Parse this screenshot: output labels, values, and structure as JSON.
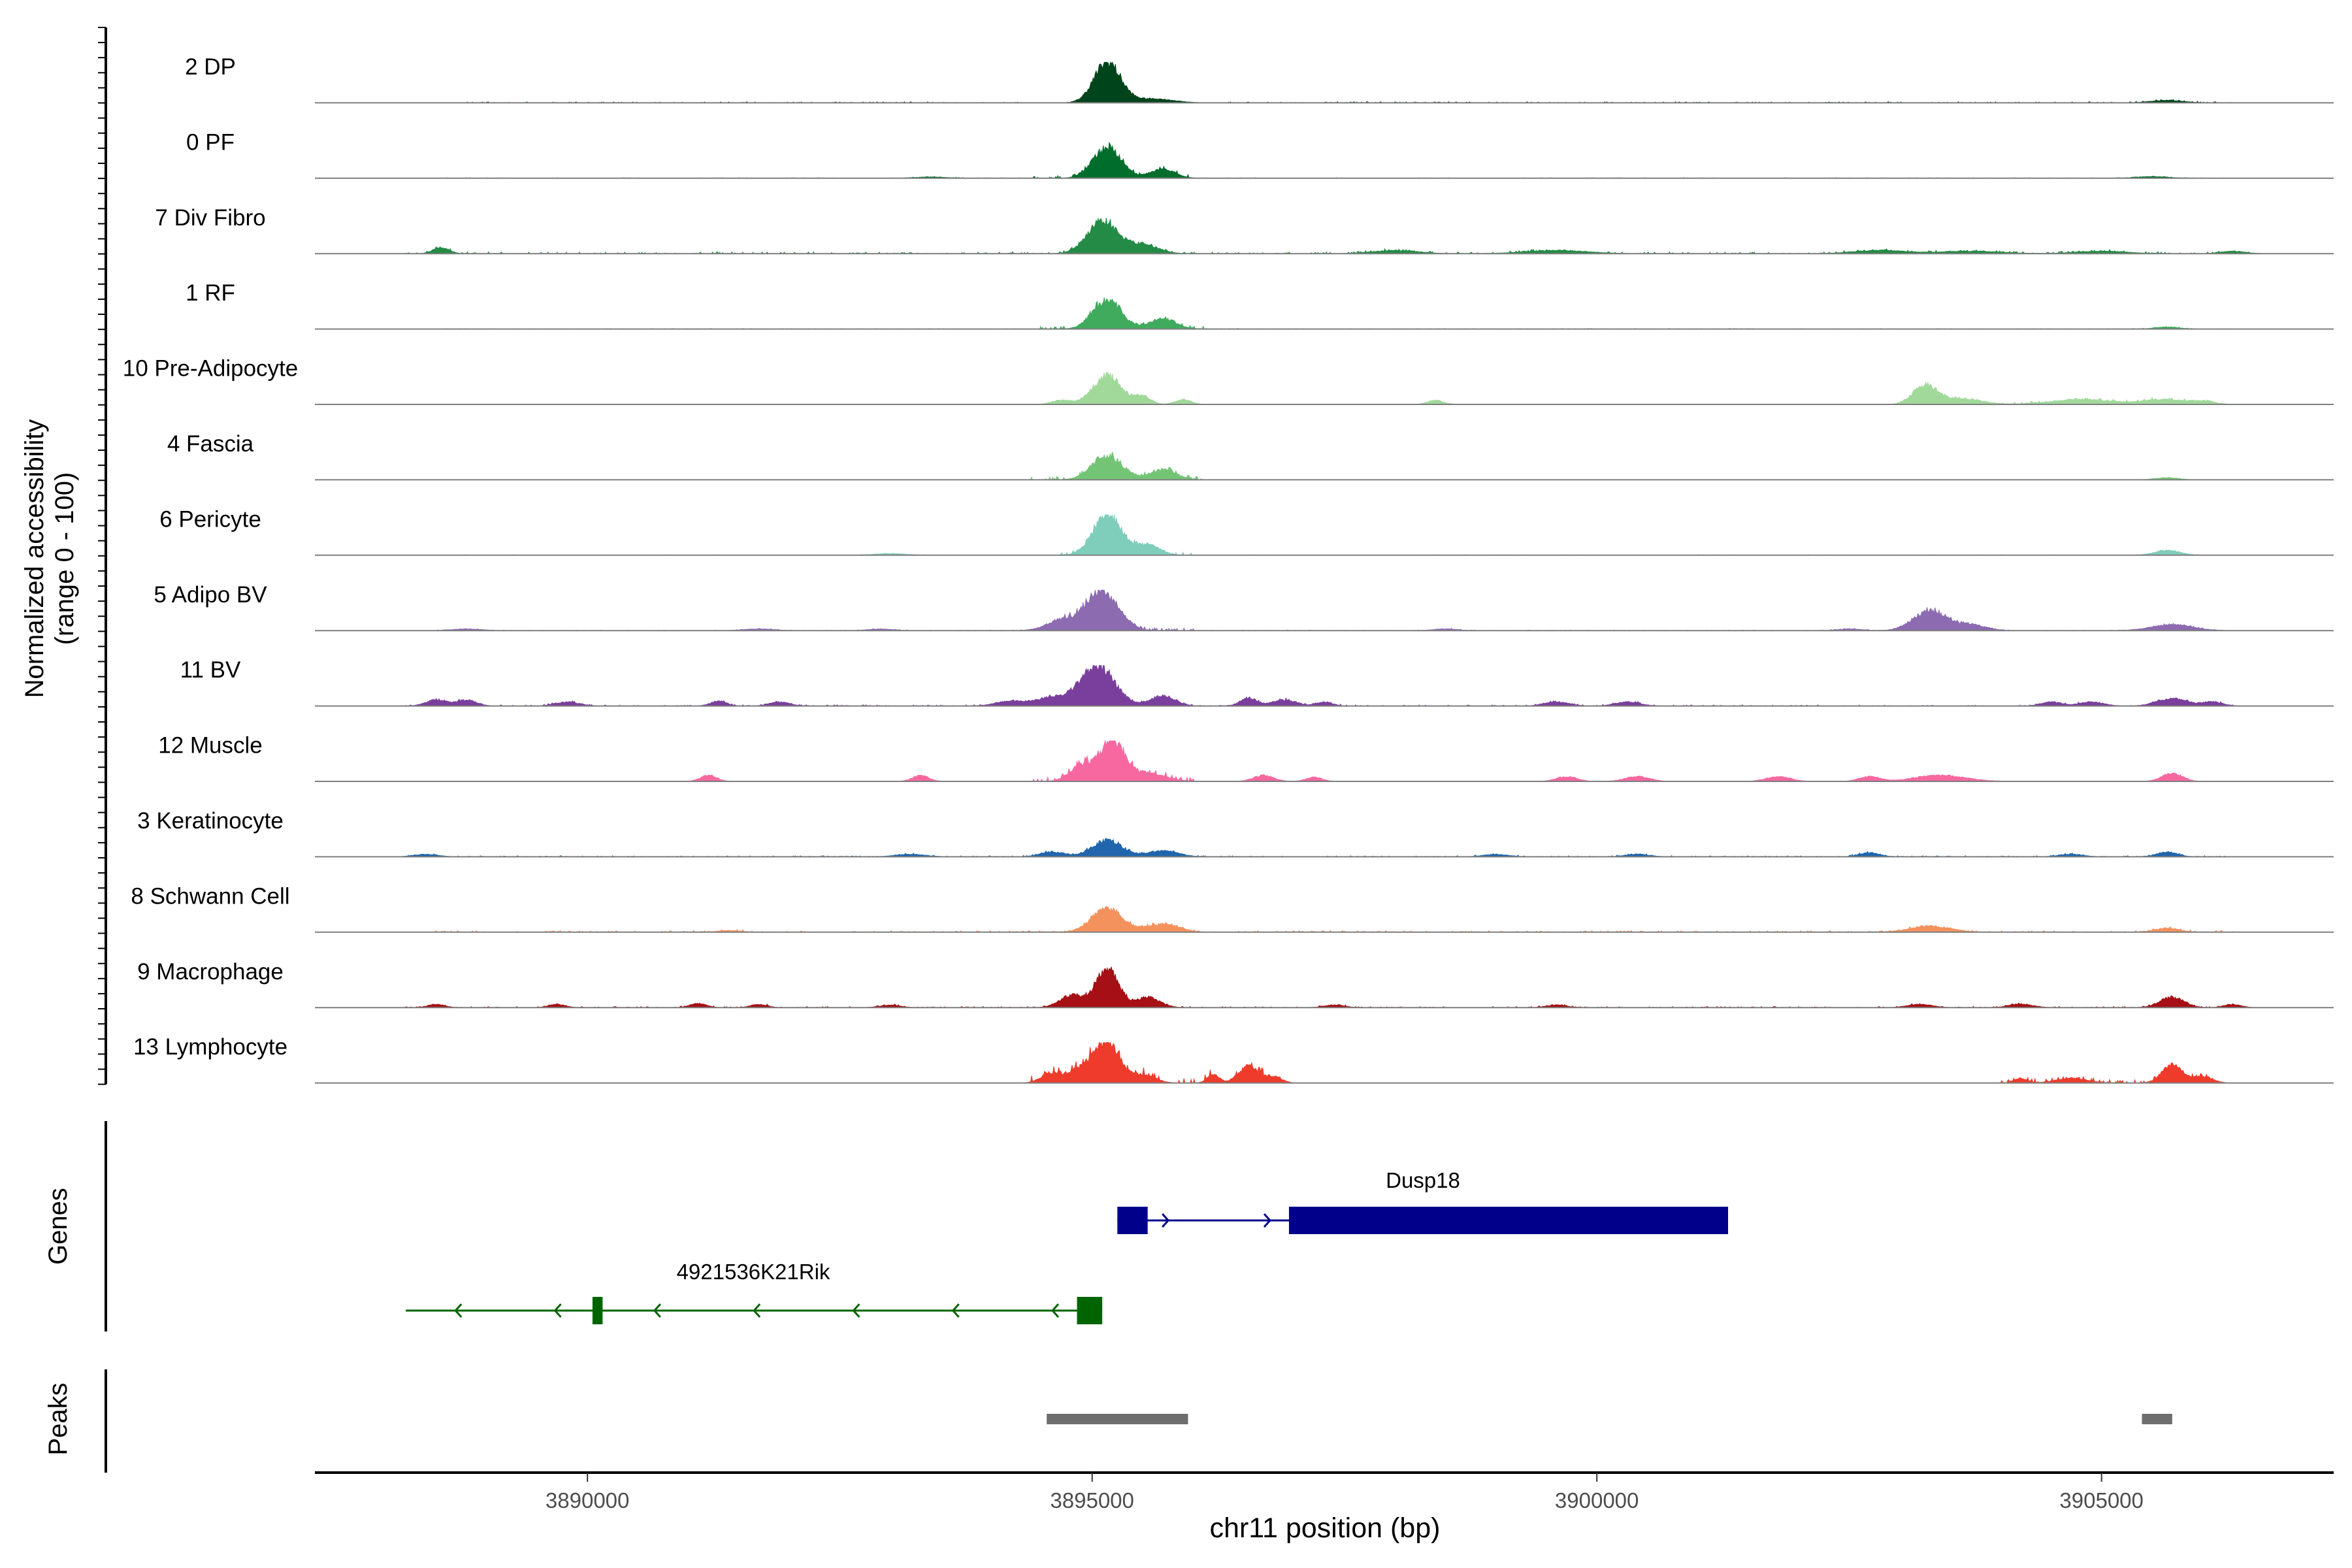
{
  "chart_data": {
    "type": "area",
    "subtype": "genome-browser-coverage-tracks",
    "xlabel": "chr11 position (bp)",
    "xlim": [
      3887300,
      3907300
    ],
    "xticks": [
      3890000,
      3895000,
      3900000,
      3905000
    ],
    "xtick_labels": [
      "3890000",
      "3895000",
      "3900000",
      "3905000"
    ],
    "ylabel_line1": "Normalized accessibility",
    "ylabel_line2": "(range 0 - 100)",
    "ylim": [
      0,
      100
    ],
    "grid": false,
    "legend": "none",
    "tracks": [
      {
        "name": "2 DP",
        "color": "#00441b",
        "peaks": [
          [
            3895150,
            100,
            130
          ],
          [
            3895600,
            10,
            200
          ],
          [
            3905650,
            6,
            160
          ]
        ],
        "noise": [
          [
            3888800,
            3894300,
            2
          ],
          [
            3896300,
            3906300,
            2
          ]
        ]
      },
      {
        "name": "0 PF",
        "color": "#006d2c",
        "peaks": [
          [
            3895150,
            75,
            140
          ],
          [
            3895700,
            22,
            120
          ],
          [
            3893400,
            3,
            150
          ],
          [
            3905500,
            4,
            160
          ]
        ],
        "noise": [
          [
            3894400,
            3896000,
            4
          ],
          [
            3888500,
            3906300,
            1
          ]
        ]
      },
      {
        "name": "7 Div Fibro",
        "color": "#238b45",
        "peaks": [
          [
            3895100,
            80,
            150
          ],
          [
            3895500,
            22,
            150
          ],
          [
            3888550,
            15,
            80
          ],
          [
            3898000,
            8,
            220
          ],
          [
            3899600,
            8,
            300
          ],
          [
            3902800,
            8,
            250
          ],
          [
            3903700,
            6,
            300
          ],
          [
            3905000,
            6,
            250
          ],
          [
            3906300,
            6,
            120
          ]
        ],
        "noise": [
          [
            3888200,
            3906500,
            3
          ]
        ]
      },
      {
        "name": "1 RF",
        "color": "#41ab5d",
        "peaks": [
          [
            3895150,
            70,
            140
          ],
          [
            3895700,
            25,
            130
          ],
          [
            3905650,
            5,
            120
          ]
        ],
        "noise": [
          [
            3894400,
            3896100,
            5
          ],
          [
            3888500,
            3906300,
            1
          ]
        ]
      },
      {
        "name": "10 Pre-Adipocyte",
        "color": "#a1d99b",
        "peaks": [
          [
            3895150,
            70,
            140
          ],
          [
            3895500,
            20,
            80
          ],
          [
            3895900,
            12,
            80
          ],
          [
            3894700,
            10,
            100
          ],
          [
            3898400,
            10,
            80
          ],
          [
            3903250,
            45,
            120
          ],
          [
            3903600,
            15,
            200
          ],
          [
            3904800,
            12,
            300
          ],
          [
            3905600,
            12,
            200
          ],
          [
            3906000,
            8,
            120
          ]
        ],
        "noise": [
          [
            3904000,
            3906100,
            3
          ]
        ]
      },
      {
        "name": "4 Fascia",
        "color": "#74c476",
        "peaks": [
          [
            3895150,
            60,
            150
          ],
          [
            3895700,
            25,
            130
          ],
          [
            3905650,
            5,
            120
          ]
        ],
        "noise": [
          [
            3894400,
            3896100,
            6
          ]
        ]
      },
      {
        "name": "6 Pericyte",
        "color": "#7fcdbb",
        "peaks": [
          [
            3895150,
            100,
            140
          ],
          [
            3895550,
            25,
            120
          ],
          [
            3905650,
            12,
            120
          ],
          [
            3893000,
            4,
            150
          ]
        ],
        "noise": [
          [
            3894500,
            3896000,
            6
          ],
          [
            3888500,
            3906300,
            1
          ]
        ]
      },
      {
        "name": "5 Adipo BV",
        "color": "#8c6bb1",
        "peaks": [
          [
            3895100,
            100,
            160
          ],
          [
            3894700,
            25,
            150
          ],
          [
            3903300,
            50,
            160
          ],
          [
            3903700,
            15,
            150
          ],
          [
            3905700,
            15,
            200
          ],
          [
            3888800,
            4,
            150
          ],
          [
            3891700,
            4,
            150
          ],
          [
            3892900,
            4,
            120
          ],
          [
            3898500,
            4,
            120
          ],
          [
            3902500,
            4,
            120
          ]
        ],
        "noise": [
          [
            3894400,
            3896000,
            5
          ],
          [
            3888500,
            3906300,
            1
          ]
        ]
      },
      {
        "name": "11 BV",
        "color": "#7a3f9d",
        "peaks": [
          [
            3895050,
            100,
            170
          ],
          [
            3894600,
            20,
            150
          ],
          [
            3895700,
            25,
            120
          ],
          [
            3896550,
            20,
            80
          ],
          [
            3896900,
            15,
            120
          ],
          [
            3888500,
            15,
            100
          ],
          [
            3888800,
            15,
            100
          ],
          [
            3889800,
            10,
            120
          ],
          [
            3891300,
            12,
            80
          ],
          [
            3891900,
            10,
            100
          ],
          [
            3894200,
            12,
            150
          ],
          [
            3897300,
            10,
            80
          ],
          [
            3899600,
            10,
            120
          ],
          [
            3900300,
            10,
            120
          ],
          [
            3904500,
            10,
            100
          ],
          [
            3904900,
            10,
            120
          ],
          [
            3905700,
            18,
            150
          ],
          [
            3906100,
            10,
            100
          ]
        ],
        "noise": [
          [
            3888200,
            3906300,
            2
          ]
        ]
      },
      {
        "name": "12 Muscle",
        "color": "#f768a1",
        "peaks": [
          [
            3895200,
            100,
            120
          ],
          [
            3894900,
            40,
            120
          ],
          [
            3895550,
            20,
            180
          ],
          [
            3891200,
            15,
            80
          ],
          [
            3893300,
            15,
            80
          ],
          [
            3896700,
            15,
            100
          ],
          [
            3897200,
            10,
            80
          ],
          [
            3899700,
            12,
            100
          ],
          [
            3900400,
            12,
            120
          ],
          [
            3901800,
            12,
            120
          ],
          [
            3902700,
            12,
            100
          ],
          [
            3903400,
            15,
            250
          ],
          [
            3905700,
            20,
            100
          ]
        ],
        "noise": [
          [
            3894400,
            3896000,
            8
          ]
        ]
      },
      {
        "name": "3 Keratinocyte",
        "color": "#2166ac",
        "peaks": [
          [
            3895150,
            40,
            150
          ],
          [
            3894600,
            12,
            120
          ],
          [
            3895700,
            15,
            150
          ],
          [
            3888400,
            6,
            120
          ],
          [
            3893200,
            6,
            150
          ],
          [
            3899000,
            6,
            120
          ],
          [
            3900400,
            6,
            120
          ],
          [
            3902700,
            10,
            100
          ],
          [
            3904700,
            6,
            120
          ],
          [
            3905650,
            12,
            100
          ]
        ],
        "noise": [
          [
            3888200,
            3906300,
            2
          ]
        ]
      },
      {
        "name": "8 Schwann Cell",
        "color": "#f4925e",
        "peaks": [
          [
            3895150,
            60,
            150
          ],
          [
            3895700,
            20,
            160
          ],
          [
            3903300,
            15,
            200
          ],
          [
            3905650,
            10,
            120
          ],
          [
            3891400,
            4,
            120
          ]
        ],
        "noise": [
          [
            3888500,
            3906300,
            3
          ]
        ]
      },
      {
        "name": "9 Macrophage",
        "color": "#a50f15",
        "peaks": [
          [
            3895150,
            100,
            110
          ],
          [
            3894800,
            30,
            120
          ],
          [
            3895550,
            25,
            120
          ],
          [
            3905700,
            25,
            120
          ],
          [
            3888500,
            8,
            80
          ],
          [
            3889700,
            8,
            80
          ],
          [
            3891100,
            10,
            80
          ],
          [
            3891700,
            8,
            80
          ],
          [
            3893000,
            6,
            100
          ],
          [
            3897400,
            6,
            100
          ],
          [
            3899600,
            6,
            100
          ],
          [
            3903200,
            8,
            120
          ],
          [
            3904200,
            8,
            120
          ],
          [
            3906300,
            8,
            80
          ]
        ],
        "noise": [
          [
            3888200,
            3906300,
            2
          ]
        ]
      },
      {
        "name": "13 Lymphocyte",
        "color": "#ee3b2b",
        "peaks": [
          [
            3895150,
            100,
            120
          ],
          [
            3894600,
            25,
            100
          ],
          [
            3894900,
            35,
            120
          ],
          [
            3895500,
            20,
            120
          ],
          [
            3896200,
            20,
            60
          ],
          [
            3896550,
            40,
            100
          ],
          [
            3896800,
            15,
            80
          ],
          [
            3905700,
            45,
            100
          ],
          [
            3906000,
            15,
            100
          ],
          [
            3904700,
            12,
            150
          ],
          [
            3904200,
            12,
            60
          ]
        ],
        "noise": [
          [
            3894400,
            3896900,
            12
          ],
          [
            3904000,
            3906100,
            6
          ]
        ]
      }
    ],
    "genes_label": "Genes",
    "genes": [
      {
        "name": "Dusp18",
        "strand": "+",
        "color": "#00008b",
        "start": 3895250,
        "end": 3901300,
        "exons": [
          [
            3895250,
            3895550
          ],
          [
            3896950,
            3901300
          ]
        ]
      },
      {
        "name": "4921536K21Rik",
        "strand": "-",
        "color": "#006400",
        "start": 3888200,
        "end": 3895100,
        "exons": [
          [
            3890050,
            3890150
          ],
          [
            3894850,
            3895100
          ]
        ]
      }
    ],
    "peaks_label": "Peaks",
    "peak_regions": [
      [
        3894550,
        3895950
      ],
      [
        3905400,
        3905700
      ]
    ]
  }
}
